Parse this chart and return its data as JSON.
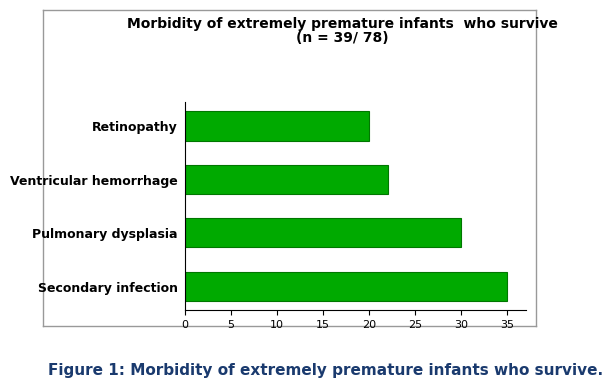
{
  "categories": [
    "Retinopathy",
    "Ventricular hemorrhage",
    "Pulmonary dysplasia",
    "Secondary infection"
  ],
  "values": [
    20,
    22,
    30,
    35
  ],
  "bar_color": "#00aa00",
  "bar_edge_color": "#007700",
  "title_line1": "Morbidity of extremely premature infants  who survive",
  "title_line2": "(n = 39/ 78)",
  "xlim": [
    0,
    37
  ],
  "xticks": [
    0,
    5,
    10,
    15,
    20,
    25,
    30,
    35
  ],
  "bar_height": 0.55,
  "background_color": "#ffffff",
  "plot_bg_color": "#ffffff",
  "caption": "Figure 1: Morbidity of extremely premature infants who survive.",
  "caption_color": "#1a3a6e",
  "title_fontsize": 10,
  "tick_fontsize": 8,
  "label_fontsize": 9,
  "caption_fontsize": 11,
  "border_color": "#aaaaaa"
}
